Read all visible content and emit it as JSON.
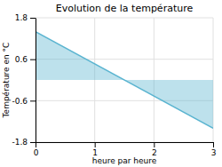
{
  "chart_data": {
    "type": "area",
    "title": "Evolution de la température",
    "xlabel": "heure par heure",
    "ylabel": "Température en °C",
    "x": [
      0,
      3
    ],
    "series": [
      {
        "values": [
          1.4,
          -1.4
        ],
        "color": "#5ab4d0"
      }
    ],
    "xlim": [
      0,
      3
    ],
    "ylim": [
      -1.8,
      1.8
    ],
    "xticks": [
      0,
      1,
      2,
      3
    ],
    "yticks": [
      -1.8,
      -0.6,
      0.6,
      1.8
    ],
    "grid": true
  }
}
